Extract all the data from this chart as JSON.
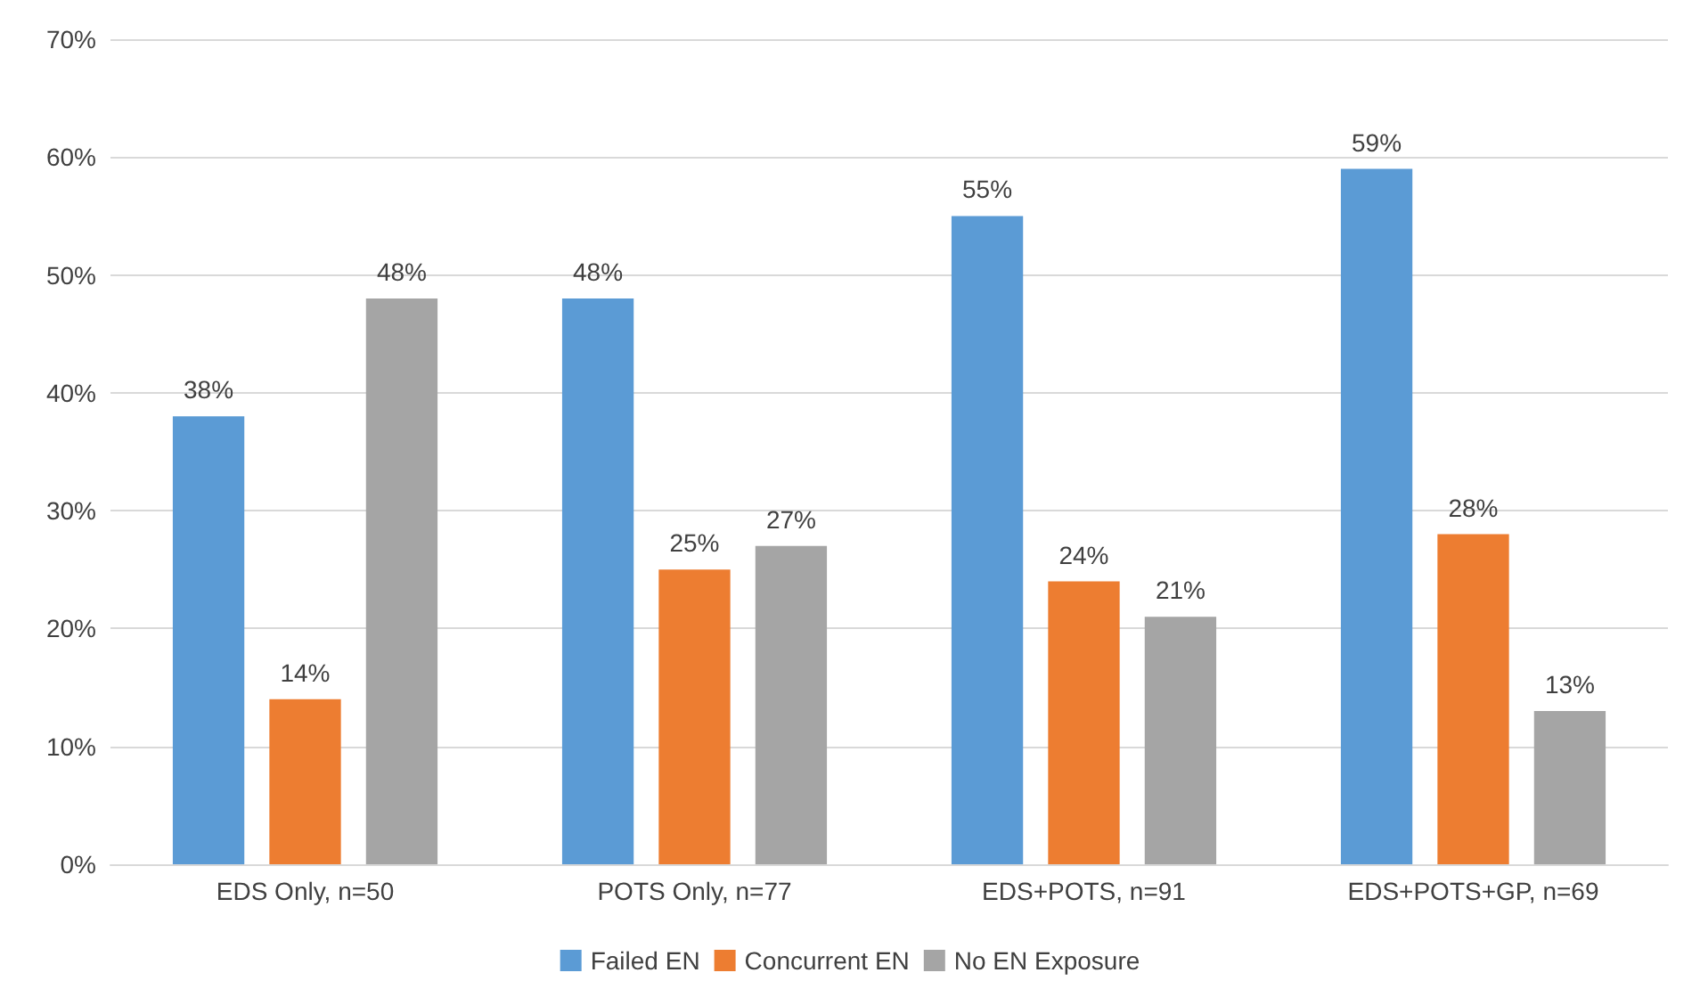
{
  "chart_data": {
    "type": "bar",
    "categories": [
      "EDS Only, n=50",
      "POTS Only, n=77",
      "EDS+POTS, n=91",
      "EDS+POTS+GP, n=69"
    ],
    "series": [
      {
        "name": "Failed EN",
        "color": "#5b9bd5",
        "values": [
          38,
          48,
          55,
          59
        ],
        "value_labels": [
          "38%",
          "48%",
          "55%",
          "59%"
        ]
      },
      {
        "name": "Concurrent EN",
        "color": "#ed7d31",
        "values": [
          14,
          25,
          24,
          28
        ],
        "value_labels": [
          "14%",
          "25%",
          "24%",
          "28%"
        ]
      },
      {
        "name": "No EN Exposure",
        "color": "#a5a5a5",
        "values": [
          48,
          27,
          21,
          13
        ],
        "value_labels": [
          "48%",
          "27%",
          "21%",
          "13%"
        ]
      }
    ],
    "ylim": [
      0,
      70
    ],
    "yticks": [
      {
        "value": 0,
        "label": "0%"
      },
      {
        "value": 10,
        "label": "10%"
      },
      {
        "value": 20,
        "label": "20%"
      },
      {
        "value": 30,
        "label": "30%"
      },
      {
        "value": 40,
        "label": "40%"
      },
      {
        "value": 50,
        "label": "50%"
      },
      {
        "value": 60,
        "label": "60%"
      },
      {
        "value": 70,
        "label": "70%"
      }
    ],
    "grid": "y",
    "legend": "bottom"
  }
}
